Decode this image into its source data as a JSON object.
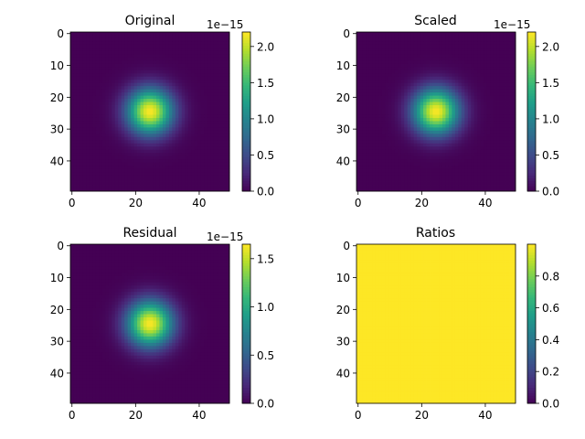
{
  "figure": {
    "background": "#ffffff"
  },
  "chart_data": [
    {
      "type": "heatmap",
      "title": "Original",
      "field": "gaussian",
      "grid_size": 50,
      "center": [
        24.5,
        24.5
      ],
      "sigma": 5,
      "xlim": [
        -0.5,
        49.5
      ],
      "ylim": [
        49.5,
        -0.5
      ],
      "x_ticks": [
        0,
        20,
        40
      ],
      "y_ticks": [
        0,
        10,
        20,
        30,
        40
      ],
      "colorbar": {
        "vmin": 0.0,
        "vmax": 2.2,
        "ticks": [
          0.0,
          0.5,
          1.0,
          1.5,
          2.0
        ],
        "tick_labels": [
          "0.0",
          "0.5",
          "1.0",
          "1.5",
          "2.0"
        ],
        "offset_label": "1e−15"
      },
      "colormap": "viridis"
    },
    {
      "type": "heatmap",
      "title": "Scaled",
      "field": "gaussian",
      "grid_size": 50,
      "center": [
        24.5,
        24.5
      ],
      "sigma": 5,
      "xlim": [
        -0.5,
        49.5
      ],
      "ylim": [
        49.5,
        -0.5
      ],
      "x_ticks": [
        0,
        20,
        40
      ],
      "y_ticks": [
        0,
        10,
        20,
        30,
        40
      ],
      "colorbar": {
        "vmin": 0.0,
        "vmax": 2.2,
        "ticks": [
          0.0,
          0.5,
          1.0,
          1.5,
          2.0
        ],
        "tick_labels": [
          "0.0",
          "0.5",
          "1.0",
          "1.5",
          "2.0"
        ],
        "offset_label": "1e−15"
      },
      "colormap": "viridis"
    },
    {
      "type": "heatmap",
      "title": "Residual",
      "field": "gaussian",
      "grid_size": 50,
      "center": [
        24.5,
        24.5
      ],
      "sigma": 5,
      "xlim": [
        -0.5,
        49.5
      ],
      "ylim": [
        49.5,
        -0.5
      ],
      "x_ticks": [
        0,
        20,
        40
      ],
      "y_ticks": [
        0,
        10,
        20,
        30,
        40
      ],
      "colorbar": {
        "vmin": 0.0,
        "vmax": 1.65,
        "ticks": [
          0.0,
          0.5,
          1.0,
          1.5
        ],
        "tick_labels": [
          "0.0",
          "0.5",
          "1.0",
          "1.5"
        ],
        "offset_label": "1e−15"
      },
      "colormap": "viridis"
    },
    {
      "type": "heatmap",
      "title": "Ratios",
      "field": "constant",
      "value": 1.0,
      "grid_size": 50,
      "xlim": [
        -0.5,
        49.5
      ],
      "ylim": [
        49.5,
        -0.5
      ],
      "x_ticks": [
        0,
        20,
        40
      ],
      "y_ticks": [
        0,
        10,
        20,
        30,
        40
      ],
      "colorbar": {
        "vmin": 0.0,
        "vmax": 1.0,
        "ticks": [
          0.0,
          0.2,
          0.4,
          0.6,
          0.8
        ],
        "tick_labels": [
          "0.0",
          "0.2",
          "0.4",
          "0.6",
          "0.8"
        ],
        "offset_label": ""
      },
      "colormap": "viridis"
    }
  ]
}
